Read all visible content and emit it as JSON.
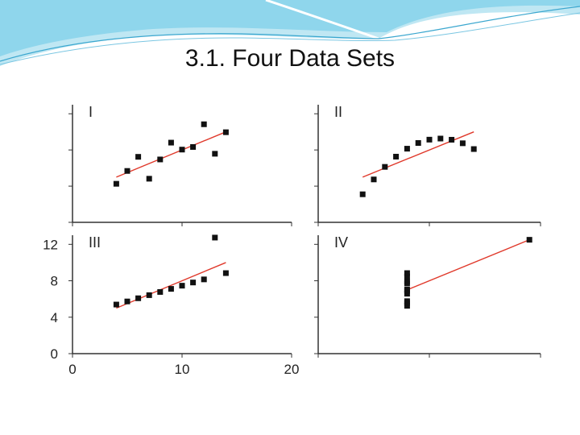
{
  "slide": {
    "title": "3.1. Four Data Sets"
  },
  "theme": {
    "point_color": "#111111",
    "line_color": "#e0392b",
    "axis_color": "#333333",
    "banner_color": "#5bc8e6"
  },
  "chart_data": {
    "type": "scatter",
    "layout": "2x2 grid",
    "shared_axes": {
      "x_ticks": [
        "0",
        "10",
        "20"
      ],
      "y_ticks": [
        "0",
        "4",
        "8",
        "12"
      ],
      "xlim": [
        0,
        20
      ],
      "ylim": [
        0,
        13
      ]
    },
    "panels": [
      {
        "label": "I",
        "points": [
          [
            4,
            4.26
          ],
          [
            5,
            5.68
          ],
          [
            6,
            7.24
          ],
          [
            7,
            4.82
          ],
          [
            8,
            6.95
          ],
          [
            9,
            8.81
          ],
          [
            10,
            8.04
          ],
          [
            11,
            8.33
          ],
          [
            12,
            10.84
          ],
          [
            13,
            7.58
          ],
          [
            14,
            9.96
          ]
        ],
        "fit_line": [
          [
            4,
            5.0
          ],
          [
            14,
            10.0
          ]
        ]
      },
      {
        "label": "II",
        "points": [
          [
            4,
            3.1
          ],
          [
            5,
            4.74
          ],
          [
            6,
            6.13
          ],
          [
            7,
            7.26
          ],
          [
            8,
            8.14
          ],
          [
            9,
            8.77
          ],
          [
            10,
            9.14
          ],
          [
            11,
            9.26
          ],
          [
            12,
            9.13
          ],
          [
            13,
            8.74
          ],
          [
            14,
            8.1
          ]
        ],
        "fit_line": [
          [
            4,
            5.0
          ],
          [
            14,
            10.0
          ]
        ]
      },
      {
        "label": "III",
        "points": [
          [
            4,
            5.39
          ],
          [
            5,
            5.73
          ],
          [
            6,
            6.08
          ],
          [
            7,
            6.42
          ],
          [
            8,
            6.77
          ],
          [
            9,
            7.11
          ],
          [
            10,
            7.46
          ],
          [
            11,
            7.81
          ],
          [
            12,
            8.15
          ],
          [
            13,
            12.74
          ],
          [
            14,
            8.84
          ]
        ],
        "fit_line": [
          [
            4,
            5.0
          ],
          [
            14,
            10.0
          ]
        ]
      },
      {
        "label": "IV",
        "points": [
          [
            8,
            5.25
          ],
          [
            8,
            5.56
          ],
          [
            8,
            5.76
          ],
          [
            8,
            6.58
          ],
          [
            8,
            6.89
          ],
          [
            8,
            7.04
          ],
          [
            8,
            7.71
          ],
          [
            8,
            7.91
          ],
          [
            8,
            8.47
          ],
          [
            8,
            8.84
          ],
          [
            19,
            12.5
          ]
        ],
        "fit_line": [
          [
            8,
            7.0
          ],
          [
            19,
            12.5
          ]
        ]
      }
    ]
  }
}
